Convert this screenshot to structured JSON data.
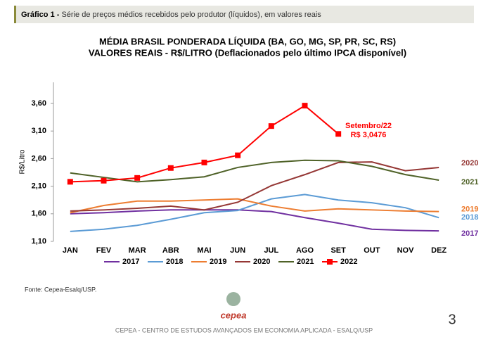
{
  "header": {
    "label": "Gráfico 1 -",
    "title": "Série de preços médios recebidos pelo produtor (líquidos), em valores reais"
  },
  "chart_data": {
    "type": "line",
    "title": "MÉDIA BRASIL PONDERADA LÍQUIDA (BA, GO, MG, SP, PR, SC, RS)",
    "subtitle": "VALORES REAIS - R$/LITRO (Deflacionados pelo último IPCA disponível)",
    "y_label": "R$/Litro",
    "categories": [
      "JAN",
      "FEV",
      "MAR",
      "ABR",
      "MAI",
      "JUN",
      "JUL",
      "AGO",
      "SET",
      "OUT",
      "NOV",
      "DEZ"
    ],
    "series": [
      {
        "name": "2017",
        "color": "#7030a0",
        "values": [
          1.6,
          1.62,
          1.65,
          1.67,
          1.67,
          1.67,
          1.64,
          1.53,
          1.43,
          1.32,
          1.3,
          1.29
        ]
      },
      {
        "name": "2018",
        "color": "#5b9bd5",
        "values": [
          1.28,
          1.32,
          1.39,
          1.5,
          1.62,
          1.66,
          1.87,
          1.95,
          1.85,
          1.8,
          1.71,
          1.53
        ]
      },
      {
        "name": "2019",
        "color": "#ed7d31",
        "values": [
          1.62,
          1.75,
          1.83,
          1.83,
          1.85,
          1.87,
          1.74,
          1.65,
          1.69,
          1.67,
          1.65,
          1.64
        ]
      },
      {
        "name": "2020",
        "color": "#953735",
        "values": [
          1.65,
          1.67,
          1.7,
          1.74,
          1.67,
          1.81,
          2.11,
          2.31,
          2.53,
          2.54,
          2.38,
          2.44
        ]
      },
      {
        "name": "2021",
        "color": "#4f6228",
        "values": [
          2.34,
          2.26,
          2.18,
          2.22,
          2.27,
          2.44,
          2.53,
          2.57,
          2.56,
          2.46,
          2.31,
          2.21
        ]
      },
      {
        "name": "2022",
        "color": "#ff0000",
        "marker": "square",
        "values": [
          2.18,
          2.2,
          2.25,
          2.43,
          2.53,
          2.66,
          3.19,
          3.56,
          3.0476,
          null,
          null,
          null
        ]
      }
    ],
    "annotation": {
      "title": "Setembro/22",
      "label": "R$ 3,0476"
    },
    "ylim": [
      1.1,
      3.6
    ],
    "yticks": [
      {
        "value": 1.1,
        "label": "1,10"
      },
      {
        "value": 1.6,
        "label": "1,60"
      },
      {
        "value": 2.1,
        "label": "2,10"
      },
      {
        "value": 2.6,
        "label": "2,60"
      },
      {
        "value": 3.1,
        "label": "3,10"
      },
      {
        "value": 3.6,
        "label": "3,60"
      }
    ],
    "grid": false,
    "legend": "bottom"
  },
  "footer": {
    "source": "Fonte: Cepea-Esalq/USP.",
    "logo": "cepea",
    "org": "CEPEA - CENTRO DE ESTUDOS AVANÇADOS EM ECONOMIA APLICADA - ESALQ/USP",
    "page": "3"
  }
}
